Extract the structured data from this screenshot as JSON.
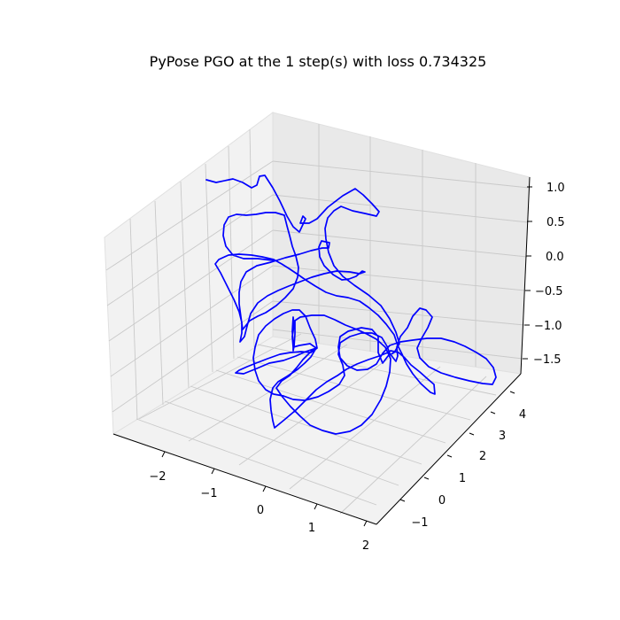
{
  "chart_data": {
    "type": "line",
    "title": "PyPose PGO at the 1 step(s) with loss 0.734325",
    "xlabel": "",
    "ylabel": "",
    "zlabel": "",
    "x_ticks": [
      "−2",
      "−1",
      "0",
      "1",
      "2"
    ],
    "y_ticks": [
      "−1",
      "0",
      "1",
      "2",
      "3",
      "4"
    ],
    "z_ticks": [
      "1.0",
      "0.5",
      "0.0",
      "−0.5",
      "−1.0",
      "−1.5"
    ],
    "grid": true,
    "series": [
      {
        "color": "#0000ff"
      }
    ]
  }
}
